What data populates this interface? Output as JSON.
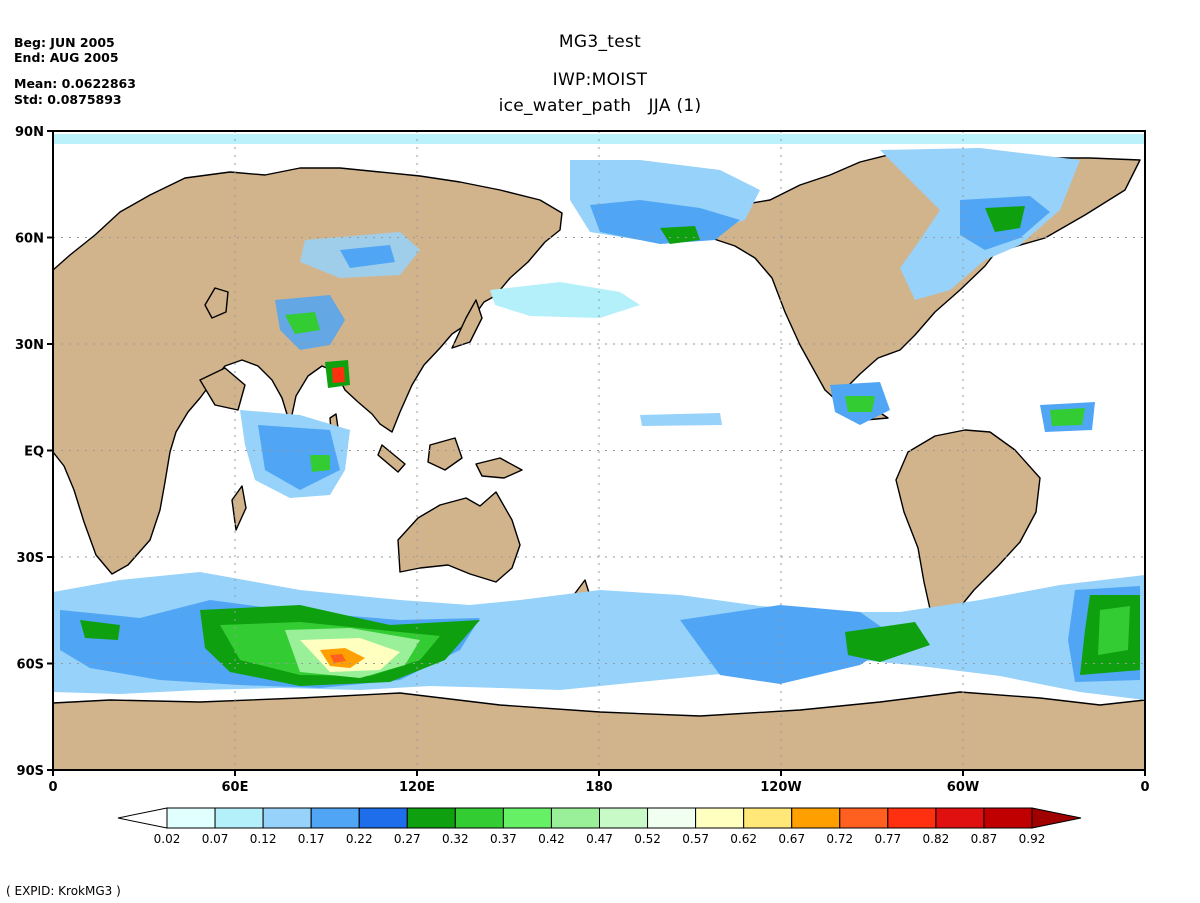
{
  "header": {
    "begin": "Beg: JUN 2005",
    "end": "End: AUG 2005",
    "mean": "Mean: 0.0622863",
    "std": "Std: 0.0875893",
    "title": "MG3_test",
    "variable": "IWP:MOIST",
    "subtitle": "ice_water_path   JJA (1)"
  },
  "axes": {
    "lat_labels": [
      "90N",
      "60N",
      "30N",
      "EQ",
      "30S",
      "60S",
      "90S"
    ],
    "lon_labels": [
      "0",
      "60E",
      "120E",
      "180",
      "120W",
      "60W",
      "0"
    ]
  },
  "colorbar": {
    "labels": [
      "0.02",
      "0.07",
      "0.12",
      "0.17",
      "0.22",
      "0.27",
      "0.32",
      "0.37",
      "0.42",
      "0.47",
      "0.52",
      "0.57",
      "0.62",
      "0.67",
      "0.72",
      "0.77",
      "0.82",
      "0.87",
      "0.92"
    ],
    "colors": [
      "#ffffff",
      "#e1ffff",
      "#b4f0fa",
      "#96d2fa",
      "#50a5f5",
      "#1e6eeb",
      "#0fa00f",
      "#33cc33",
      "#66f066",
      "#99f099",
      "#c8fac8",
      "#f0fff0",
      "#ffffc0",
      "#ffe878",
      "#ffa000",
      "#ff6020",
      "#ff3010",
      "#e01010",
      "#c00000",
      "#a00000"
    ]
  },
  "footer": "( EXPID: KrokMG3 )",
  "colors": {
    "land": "#d2b48c",
    "ocean": "#ffffff",
    "coast": "#000000"
  }
}
